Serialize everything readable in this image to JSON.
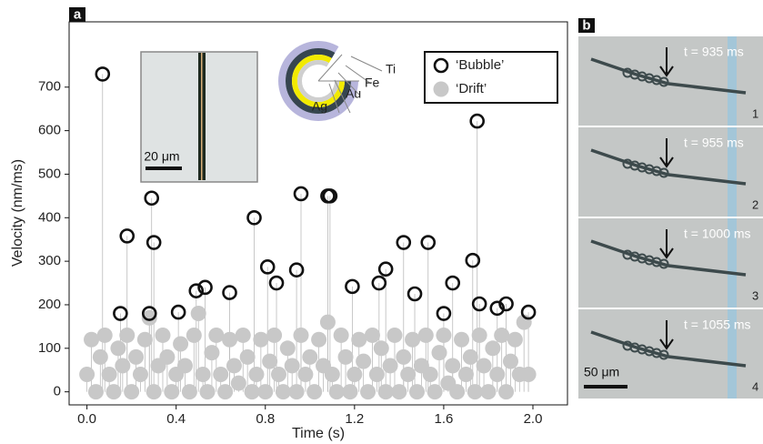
{
  "chart_data": {
    "type": "scatter",
    "panel_label": "a",
    "xlabel": "Time (s)",
    "ylabel": "Velocity (nm/ms)",
    "xlim": [
      -0.08,
      2.155
    ],
    "ylim": [
      -30,
      850
    ],
    "xticks": [
      {
        "value": 0,
        "label": "0.0"
      },
      0.4,
      0.8,
      1.2,
      1.6,
      {
        "value": 2,
        "label": "2.0"
      }
    ],
    "yticks": [
      0,
      100,
      200,
      300,
      400,
      500,
      600,
      700
    ],
    "legend": "upper right",
    "series": [
      {
        "name": "‘Bubble’",
        "color": "#111111",
        "marker": "open",
        "x": [
          0.07,
          0.15,
          0.18,
          0.28,
          0.29,
          0.3,
          0.41,
          0.49,
          0.53,
          0.64,
          0.75,
          0.81,
          0.85,
          0.94,
          0.96,
          1.08,
          1.09,
          1.19,
          1.31,
          1.34,
          1.42,
          1.47,
          1.53,
          1.6,
          1.64,
          1.73,
          1.75,
          1.76,
          1.84,
          1.88,
          1.98
        ],
        "values": [
          730,
          180,
          358,
          180,
          445,
          343,
          183,
          232,
          240,
          228,
          400,
          287,
          250,
          280,
          455,
          450,
          450,
          242,
          250,
          282,
          343,
          225,
          343,
          180,
          250,
          302,
          622,
          202,
          192,
          202,
          183
        ]
      },
      {
        "name": "‘Drift’",
        "color": "#c8c8c8",
        "marker": "filled",
        "x": [
          0.0,
          0.02,
          0.04,
          0.06,
          0.08,
          0.1,
          0.12,
          0.14,
          0.16,
          0.18,
          0.2,
          0.22,
          0.24,
          0.26,
          0.28,
          0.3,
          0.32,
          0.34,
          0.36,
          0.38,
          0.4,
          0.42,
          0.44,
          0.46,
          0.48,
          0.5,
          0.52,
          0.54,
          0.56,
          0.58,
          0.6,
          0.62,
          0.64,
          0.66,
          0.68,
          0.7,
          0.72,
          0.74,
          0.76,
          0.78,
          0.8,
          0.82,
          0.84,
          0.86,
          0.88,
          0.9,
          0.92,
          0.94,
          0.96,
          0.98,
          1.0,
          1.02,
          1.04,
          1.06,
          1.08,
          1.1,
          1.12,
          1.14,
          1.16,
          1.18,
          1.2,
          1.22,
          1.24,
          1.26,
          1.28,
          1.3,
          1.32,
          1.34,
          1.36,
          1.38,
          1.4,
          1.42,
          1.44,
          1.46,
          1.48,
          1.5,
          1.52,
          1.54,
          1.56,
          1.58,
          1.6,
          1.62,
          1.64,
          1.66,
          1.68,
          1.7,
          1.72,
          1.74,
          1.76,
          1.78,
          1.8,
          1.82,
          1.84,
          1.86,
          1.88,
          1.9,
          1.92,
          1.94,
          1.96,
          1.98
        ],
        "values": [
          40,
          120,
          0,
          80,
          130,
          40,
          0,
          100,
          60,
          130,
          0,
          80,
          40,
          120,
          170,
          0,
          60,
          130,
          80,
          0,
          40,
          110,
          60,
          0,
          130,
          180,
          40,
          0,
          90,
          130,
          40,
          0,
          120,
          60,
          20,
          130,
          80,
          0,
          40,
          120,
          0,
          70,
          130,
          40,
          0,
          100,
          60,
          0,
          130,
          40,
          80,
          0,
          120,
          60,
          160,
          40,
          0,
          130,
          80,
          0,
          40,
          120,
          70,
          0,
          130,
          40,
          100,
          0,
          60,
          130,
          0,
          80,
          40,
          120,
          0,
          60,
          130,
          40,
          0,
          90,
          130,
          20,
          60,
          0,
          120,
          40,
          80,
          0,
          130,
          60,
          0,
          100,
          40,
          130,
          0,
          70,
          120,
          40,
          160,
          40
        ]
      }
    ],
    "inset": {
      "scale_bar": "20 μm",
      "layers": [
        "Ti",
        "Fe",
        "Au",
        "Ag"
      ]
    }
  },
  "panel_b": {
    "label": "b",
    "scale_bar": "50 μm",
    "frames": [
      {
        "time": "t = 935 ms",
        "index": "1"
      },
      {
        "time": "t = 955 ms",
        "index": "2"
      },
      {
        "time": "t = 1000 ms",
        "index": "3"
      },
      {
        "time": "t = 1055 ms",
        "index": "4"
      }
    ]
  }
}
